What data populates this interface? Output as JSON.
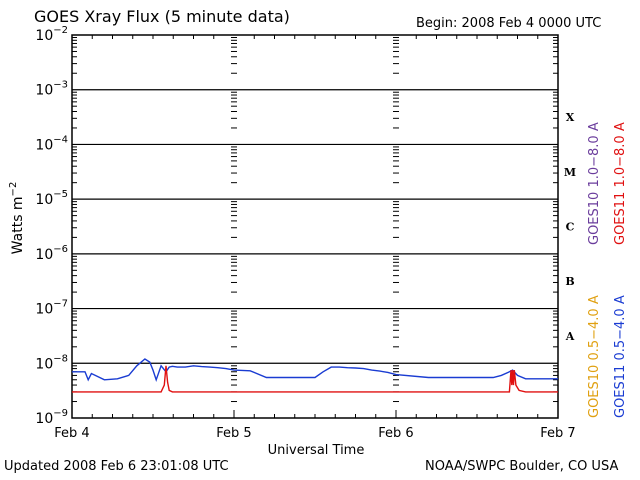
{
  "header": {
    "title": "GOES Xray Flux (5 minute data)",
    "begin": "Begin:  2008 Feb 4 0000 UTC"
  },
  "footer": {
    "updated": "Updated 2008 Feb  6 23:01:08 UTC",
    "credit": "NOAA/SWPC Boulder, CO USA"
  },
  "colors": {
    "goes10_long": "#6a3c9c",
    "goes11_long": "#e01010",
    "goes10_short": "#e0a010",
    "goes11_short": "#1a3cd2"
  },
  "chart_data": {
    "type": "line",
    "title": "GOES Xray Flux (5 minute data)",
    "xlabel": "Universal Time",
    "ylabel": "Watts m^-2",
    "yscale": "log",
    "ylim": [
      1e-09,
      0.01
    ],
    "xlim": [
      "2008-02-04 00:00",
      "2008-02-07 00:00"
    ],
    "x_ticks": [
      "Feb 4",
      "Feb 5",
      "Feb 6",
      "Feb 7"
    ],
    "y_tick_exponents": [
      -2,
      -3,
      -4,
      -5,
      -6,
      -7,
      -8,
      -9
    ],
    "flare_classes": [
      {
        "label": "X",
        "decade": -4
      },
      {
        "label": "M",
        "decade": -5
      },
      {
        "label": "C",
        "decade": -6
      },
      {
        "label": "B",
        "decade": -7
      },
      {
        "label": "A",
        "decade": -8
      }
    ],
    "legend": [
      {
        "label": "GOES10 1.0−8.0 A",
        "color": "#6a3c9c"
      },
      {
        "label": "GOES11 1.0−8.0 A",
        "color": "#e01010"
      },
      {
        "label": "GOES10 0.5−4.0 A",
        "color": "#e0a010"
      },
      {
        "label": "GOES11 0.5−4.0 A",
        "color": "#1a3cd2"
      }
    ],
    "series": [
      {
        "name": "GOES11 0.5−4.0 A",
        "color": "#1a3cd2",
        "x": [
          0.0,
          0.08,
          0.1,
          0.12,
          0.2,
          0.28,
          0.35,
          0.4,
          0.45,
          0.48,
          0.5,
          0.52,
          0.55,
          0.58,
          0.6,
          0.62,
          0.65,
          0.7,
          0.75,
          0.8,
          0.85,
          0.9,
          0.95,
          1.0,
          1.1,
          1.2,
          1.3,
          1.4,
          1.5,
          1.55,
          1.6,
          1.65,
          1.7,
          1.75,
          1.8,
          1.85,
          1.9,
          1.95,
          2.0,
          2.2,
          2.4,
          2.6,
          2.65,
          2.7,
          2.72,
          2.75,
          2.8,
          2.9,
          3.0
        ],
        "y": [
          7e-09,
          7e-09,
          5e-09,
          6.5e-09,
          5e-09,
          5.2e-09,
          6e-09,
          9e-09,
          1.2e-08,
          1.05e-08,
          7.5e-09,
          5e-09,
          9e-09,
          7e-09,
          8.5e-09,
          8.8e-09,
          8.5e-09,
          8.5e-09,
          9e-09,
          8.7e-09,
          8.5e-09,
          8.3e-09,
          8e-09,
          7.5e-09,
          7.3e-09,
          5.5e-09,
          5.5e-09,
          5.5e-09,
          5.5e-09,
          7e-09,
          8.5e-09,
          8.5e-09,
          8.3e-09,
          8.2e-09,
          8e-09,
          7.5e-09,
          7.2e-09,
          6.8e-09,
          6.2e-09,
          5.5e-09,
          5.5e-09,
          5.5e-09,
          6e-09,
          7e-09,
          7.5e-09,
          6e-09,
          5.2e-09,
          5.2e-09,
          5.2e-09
        ]
      },
      {
        "name": "GOES11 1.0−8.0 A",
        "color": "#e01010",
        "x": [
          0.0,
          0.55,
          0.57,
          0.58,
          0.59,
          0.6,
          0.62,
          1.0,
          1.5,
          2.0,
          2.5,
          2.7,
          2.71,
          2.715,
          2.72,
          2.725,
          2.73,
          2.74,
          2.76,
          2.8,
          3.0
        ],
        "y": [
          3e-09,
          3e-09,
          4e-09,
          9e-09,
          4.5e-09,
          3.2e-09,
          3e-09,
          3e-09,
          3e-09,
          3e-09,
          3e-09,
          3e-09,
          7.5e-09,
          4e-09,
          7.5e-09,
          4e-09,
          7.5e-09,
          4e-09,
          3.2e-09,
          3e-09,
          3e-09
        ]
      }
    ]
  }
}
